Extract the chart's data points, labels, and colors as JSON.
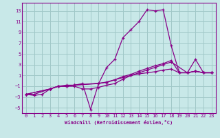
{
  "xlabel": "Windchill (Refroidissement éolien,°C)",
  "bg_color": "#c8e8e8",
  "grid_color": "#a0c8c8",
  "line_color": "#880088",
  "xlim": [
    -0.5,
    23.5
  ],
  "ylim": [
    -6,
    14.5
  ],
  "xticks": [
    0,
    1,
    2,
    3,
    4,
    5,
    6,
    7,
    8,
    9,
    10,
    11,
    12,
    13,
    14,
    15,
    16,
    17,
    18,
    19,
    20,
    21,
    22,
    23
  ],
  "yticks": [
    -5,
    -3,
    -1,
    1,
    3,
    5,
    7,
    9,
    11,
    13
  ],
  "line1_x": [
    0,
    1,
    2,
    3,
    4,
    5,
    6,
    7,
    8,
    9,
    10,
    11,
    12,
    13,
    14,
    15,
    16,
    17,
    18,
    19,
    20,
    21,
    22,
    23
  ],
  "line1_y": [
    -2.5,
    -2.7,
    -2.5,
    -1.5,
    -1.0,
    -0.8,
    -0.8,
    -0.5,
    -5.3,
    -0.5,
    2.5,
    4.0,
    8.0,
    9.5,
    11.0,
    13.2,
    13.0,
    13.2,
    6.5,
    1.5,
    1.5,
    4.0,
    1.5,
    1.5
  ],
  "line2_x": [
    0,
    1,
    3,
    4,
    5,
    6,
    7,
    8,
    9,
    10,
    11,
    12,
    13,
    14,
    15,
    16,
    17,
    18,
    20,
    21,
    22,
    23
  ],
  "line2_y": [
    -2.5,
    -2.5,
    -1.5,
    -1.0,
    -1.0,
    -1.0,
    -1.5,
    -1.5,
    -1.2,
    -0.8,
    -0.5,
    0.3,
    1.0,
    1.5,
    2.0,
    2.5,
    3.0,
    3.5,
    1.5,
    1.8,
    1.5,
    1.5
  ],
  "line3_x": [
    0,
    3,
    4,
    5,
    6,
    10,
    11,
    12,
    13,
    14,
    15,
    16,
    17,
    18,
    19,
    20,
    21,
    22,
    23
  ],
  "line3_y": [
    -2.5,
    -1.5,
    -1.0,
    -1.0,
    -0.8,
    -0.3,
    0.2,
    0.8,
    1.2,
    1.8,
    2.3,
    2.8,
    3.2,
    3.8,
    1.5,
    1.5,
    1.8,
    1.5,
    1.5
  ],
  "line4_x": [
    0,
    3,
    4,
    5,
    6,
    9,
    10,
    11,
    12,
    13,
    14,
    15,
    16,
    17,
    18,
    19,
    20,
    21,
    22,
    23
  ],
  "line4_y": [
    -2.5,
    -1.5,
    -1.0,
    -1.0,
    -0.8,
    -0.5,
    -0.2,
    0.2,
    0.6,
    1.0,
    1.3,
    1.5,
    1.7,
    2.0,
    2.2,
    1.5,
    1.5,
    1.8,
    1.5,
    1.5
  ]
}
